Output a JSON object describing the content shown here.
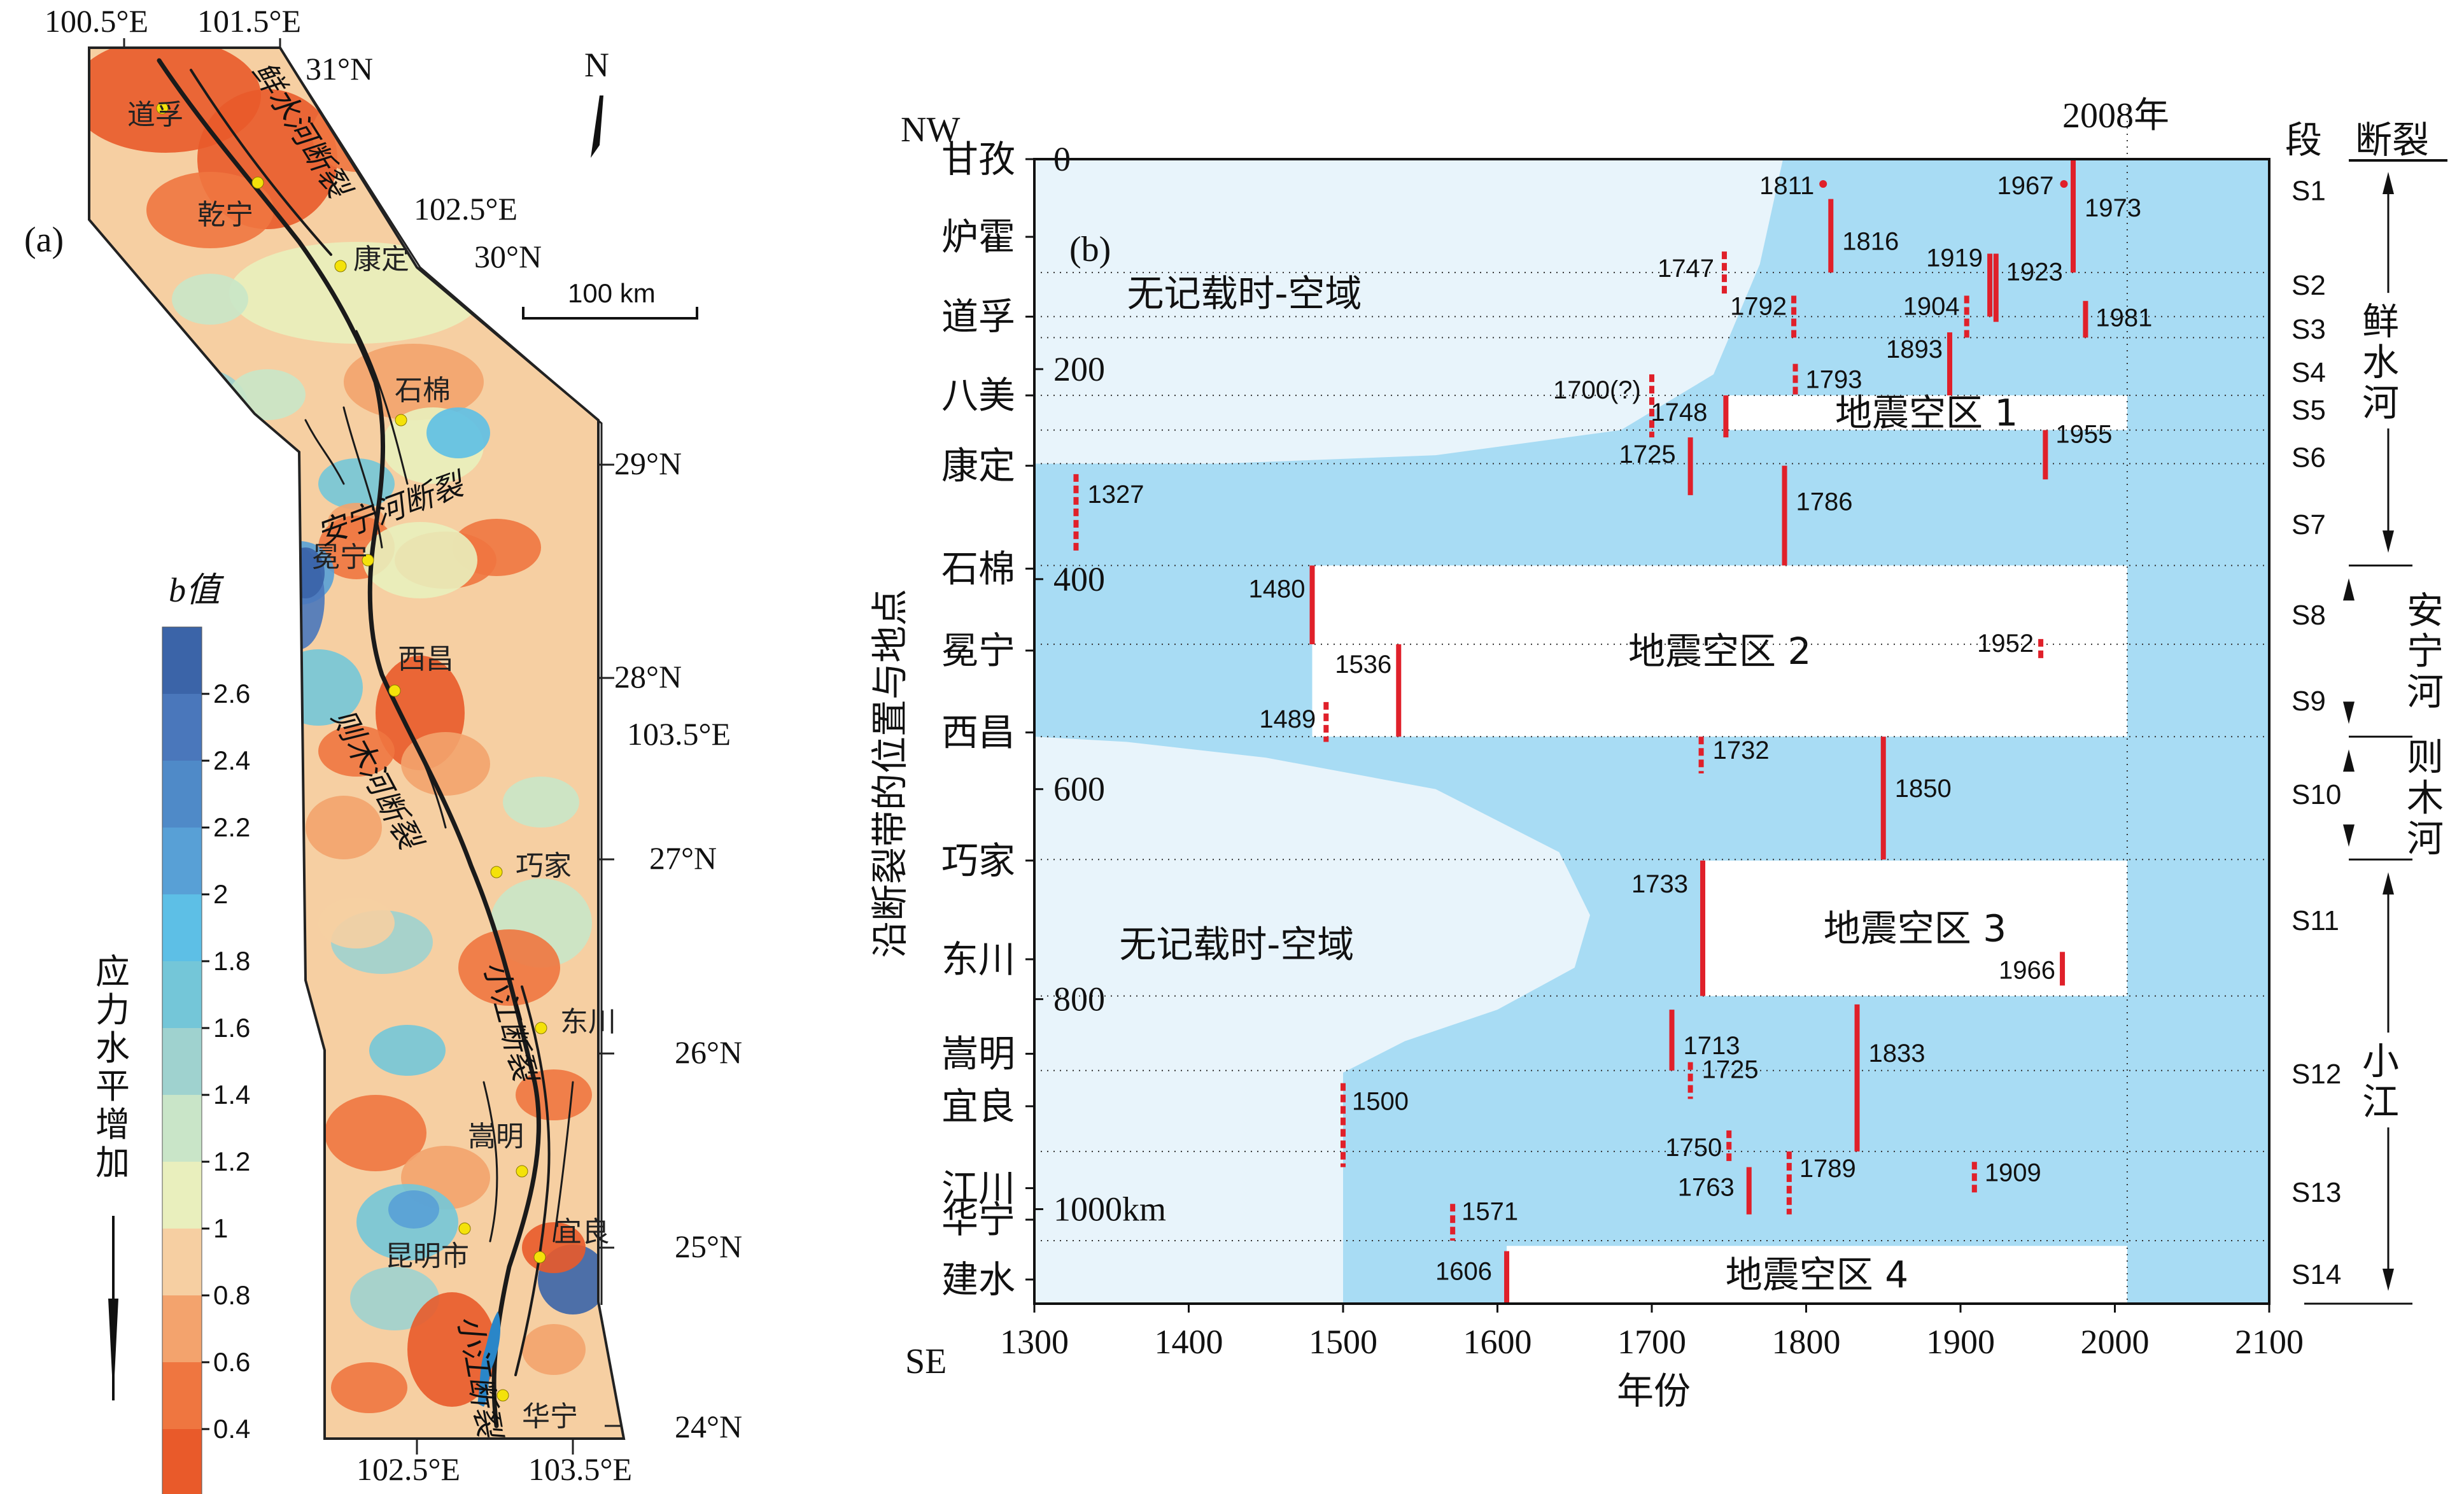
{
  "chart_data": [
    {
      "type": "map",
      "panel_label": "(a)",
      "north_label": "N",
      "scale_label": "100 km",
      "lon_labels": [
        "100.5°E",
        "101.5°E",
        "102.5°E",
        "103.5°E",
        "102.5°E",
        "103.5°E"
      ],
      "lat_labels": [
        "31°N",
        "30°N",
        "29°N",
        "28°N",
        "27°N",
        "26°N",
        "25°N",
        "24°N"
      ],
      "places": [
        "道孚",
        "乾宁",
        "康定",
        "石棉",
        "冕宁",
        "西昌",
        "巧家",
        "东川",
        "嵩明",
        "昆明市",
        "宜良",
        "华宁"
      ],
      "faults": [
        "鲜水河断裂",
        "安宁河断裂",
        "则木河断裂",
        "小江断裂",
        "小江断裂"
      ],
      "legend": {
        "title": "b值",
        "ticks": [
          "2.6",
          "2.4",
          "2.2",
          "2",
          "1.8",
          "1.6",
          "1.4",
          "1.2",
          "1",
          "0.8",
          "0.6",
          "0.4"
        ],
        "colors": [
          "#3b64a8",
          "#4a77bb",
          "#4f8ac8",
          "#58a0d6",
          "#5dbfe6",
          "#74c6d8",
          "#9fd2cf",
          "#c9e5c8",
          "#e9efbd",
          "#f6cfa2",
          "#f3a36d",
          "#ef7640",
          "#e95a2a"
        ],
        "arrow_label": "应力水平增加"
      }
    },
    {
      "type": "timeline",
      "panel_label": "(b)",
      "xlabel": "年份",
      "ylabel": "沿断裂带的位置与地点",
      "x_ticks": [
        1300,
        1400,
        1500,
        1600,
        1700,
        1800,
        1900,
        2000,
        2100
      ],
      "xlim": [
        1300,
        2100
      ],
      "ylim": [
        0,
        1090
      ],
      "y_ticks": [
        {
          "value": 0,
          "label": "0"
        },
        {
          "value": 200,
          "label": "200"
        },
        {
          "value": 400,
          "label": "400"
        },
        {
          "value": 600,
          "label": "600"
        },
        {
          "value": 800,
          "label": "800"
        },
        {
          "value": 1000,
          "label": "1000km"
        }
      ],
      "corner_labels": {
        "top_left": "NW",
        "bottom_left": "SE"
      },
      "year_mark": {
        "year": 2008,
        "label": "2008年"
      },
      "places": [
        {
          "name": "甘孜",
          "km": 0
        },
        {
          "name": "炉霍",
          "km": 74
        },
        {
          "name": "道孚",
          "km": 150
        },
        {
          "name": "八美",
          "km": 225
        },
        {
          "name": "康定",
          "km": 292
        },
        {
          "name": "石棉",
          "km": 390
        },
        {
          "name": "冕宁",
          "km": 468
        },
        {
          "name": "西昌",
          "km": 546
        },
        {
          "name": "巧家",
          "km": 668
        },
        {
          "name": "东川",
          "km": 762
        },
        {
          "name": "嵩明",
          "km": 852
        },
        {
          "name": "宜良",
          "km": 902
        },
        {
          "name": "江川",
          "km": 980
        },
        {
          "name": "华宁",
          "km": 1010
        },
        {
          "name": "建水",
          "km": 1067
        }
      ],
      "segments": [
        {
          "name": "S1",
          "km": 30
        },
        {
          "name": "S2",
          "km": 120
        },
        {
          "name": "S3",
          "km": 162
        },
        {
          "name": "S4",
          "km": 203
        },
        {
          "name": "S5",
          "km": 239
        },
        {
          "name": "S6",
          "km": 284
        },
        {
          "name": "S7",
          "km": 348
        },
        {
          "name": "S8",
          "km": 434
        },
        {
          "name": "S9",
          "km": 516
        },
        {
          "name": "S10",
          "km": 605
        },
        {
          "name": "S11",
          "km": 725
        },
        {
          "name": "S12",
          "km": 871
        },
        {
          "name": "S13",
          "km": 984
        },
        {
          "name": "S14",
          "km": 1062
        }
      ],
      "segment_header": "段",
      "fault_header": "断裂",
      "fault_groups": [
        {
          "name": "鲜水河",
          "from_km": 0,
          "to_km": 387
        },
        {
          "name": "安宁河",
          "from_km": 387,
          "to_km": 550
        },
        {
          "name": "则木河",
          "from_km": 550,
          "to_km": 667
        },
        {
          "name": "小江",
          "from_km": 667,
          "to_km": 1090
        }
      ],
      "no_record_label": "无记载时-空域",
      "gaps": [
        {
          "label": "地震空区 1",
          "x0": 1748,
          "x1": 2008,
          "y0": 225,
          "y1": 258
        },
        {
          "label": "地震空区 2",
          "x0": 1480,
          "x1": 2008,
          "y0": 387,
          "y1": 550
        },
        {
          "label": "地震空区 3",
          "x0": 1733,
          "x1": 2008,
          "y0": 668,
          "y1": 797
        },
        {
          "label": "地震空区 4",
          "x0": 1606,
          "x1": 2008,
          "y0": 1035,
          "y1": 1090
        }
      ],
      "events": [
        {
          "year": 1811,
          "label": "1811",
          "y0": 20,
          "y1": 26,
          "style": "dot"
        },
        {
          "year": 1967,
          "label": "1967",
          "y0": 20,
          "y1": 26,
          "style": "dot"
        },
        {
          "year": 1973,
          "label": "1973",
          "y0": 0,
          "y1": 108,
          "style": "solid"
        },
        {
          "year": 1816,
          "label": "1816",
          "y0": 38,
          "y1": 108,
          "style": "solid"
        },
        {
          "year": 1747,
          "label": "1747",
          "y0": 88,
          "y1": 130,
          "style": "dashed"
        },
        {
          "year": 1919,
          "label": "1919",
          "y0": 90,
          "y1": 150,
          "style": "solid"
        },
        {
          "year": 1923,
          "label": "1923",
          "y0": 90,
          "y1": 155,
          "style": "solid"
        },
        {
          "year": 1792,
          "label": "1792",
          "y0": 130,
          "y1": 170,
          "style": "dashed"
        },
        {
          "year": 1904,
          "label": "1904",
          "y0": 130,
          "y1": 170,
          "style": "dashed"
        },
        {
          "year": 1981,
          "label": "1981",
          "y0": 135,
          "y1": 170,
          "style": "solid"
        },
        {
          "year": 1793,
          "label": "1793",
          "y0": 195,
          "y1": 225,
          "style": "dashed"
        },
        {
          "year": 1893,
          "label": "1893",
          "y0": 165,
          "y1": 225,
          "style": "solid"
        },
        {
          "year": 1700,
          "label": "1700(?)",
          "y0": 205,
          "y1": 265,
          "style": "dashed"
        },
        {
          "year": 1748,
          "label": "1748",
          "y0": 225,
          "y1": 265,
          "style": "solid"
        },
        {
          "year": 1725,
          "label": "1725",
          "y0": 265,
          "y1": 320,
          "style": "solid"
        },
        {
          "year": 1955,
          "label": "1955",
          "y0": 258,
          "y1": 305,
          "style": "solid"
        },
        {
          "year": 1327,
          "label": "1327",
          "y0": 300,
          "y1": 375,
          "style": "dashed"
        },
        {
          "year": 1786,
          "label": "1786",
          "y0": 292,
          "y1": 387,
          "style": "solid"
        },
        {
          "year": 1480,
          "label": "1480",
          "y0": 387,
          "y1": 462,
          "style": "solid"
        },
        {
          "year": 1952,
          "label": "1952",
          "y0": 457,
          "y1": 477,
          "style": "dashed"
        },
        {
          "year": 1536,
          "label": "1536",
          "y0": 462,
          "y1": 550,
          "style": "solid"
        },
        {
          "year": 1489,
          "label": "1489",
          "y0": 517,
          "y1": 555,
          "style": "dashed"
        },
        {
          "year": 1732,
          "label": "1732",
          "y0": 550,
          "y1": 585,
          "style": "dashed"
        },
        {
          "year": 1850,
          "label": "1850",
          "y0": 550,
          "y1": 667,
          "style": "solid"
        },
        {
          "year": 1733,
          "label": "1733",
          "y0": 668,
          "y1": 797,
          "style": "solid"
        },
        {
          "year": 1966,
          "label": "1966",
          "y0": 755,
          "y1": 787,
          "style": "solid"
        },
        {
          "year": 1713,
          "label": "1713",
          "y0": 810,
          "y1": 868,
          "style": "solid"
        },
        {
          "year": 1725,
          "label": "1725",
          "y0": 860,
          "y1": 895,
          "style": "dashed"
        },
        {
          "year": 1833,
          "label": "1833",
          "y0": 805,
          "y1": 945,
          "style": "solid"
        },
        {
          "year": 1500,
          "label": "1500",
          "y0": 880,
          "y1": 960,
          "style": "dashed"
        },
        {
          "year": 1750,
          "label": "1750",
          "y0": 925,
          "y1": 955,
          "style": "dashed"
        },
        {
          "year": 1763,
          "label": "1763",
          "y0": 960,
          "y1": 1005,
          "style": "solid"
        },
        {
          "year": 1789,
          "label": "1789",
          "y0": 945,
          "y1": 1005,
          "style": "dashed"
        },
        {
          "year": 1909,
          "label": "1909",
          "y0": 955,
          "y1": 985,
          "style": "dashed"
        },
        {
          "year": 1571,
          "label": "1571",
          "y0": 995,
          "y1": 1030,
          "style": "dashed"
        },
        {
          "year": 1606,
          "label": "1606",
          "y0": 1040,
          "y1": 1090,
          "style": "solid"
        }
      ],
      "colors": {
        "recorded": "#a8dcf4",
        "unrecorded": "#e8f4fb",
        "gap": "#ffffff",
        "event": "#e0202a",
        "grid": "#333333"
      }
    }
  ]
}
